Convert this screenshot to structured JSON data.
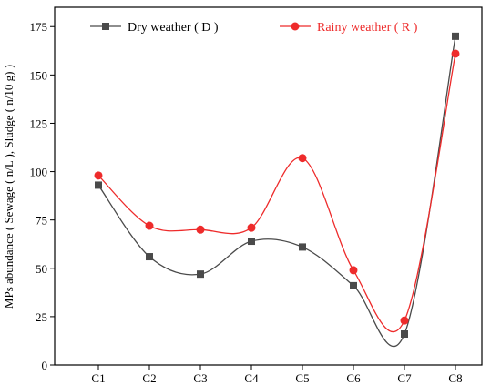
{
  "chart_data": {
    "type": "line",
    "title": "",
    "xlabel": "",
    "ylabel": "MPs abundance ( Sewage ( n/L ), Sludge ( n/10 g) )",
    "categories": [
      "C1",
      "C2",
      "C3",
      "C4",
      "C5",
      "C6",
      "C7",
      "C8"
    ],
    "ylim": [
      0,
      185
    ],
    "yticks": [
      0,
      25,
      50,
      75,
      100,
      125,
      150,
      175
    ],
    "grid": false,
    "legend_position": "top",
    "series": [
      {
        "name": "Dry weather ( D )",
        "values": [
          93,
          56,
          47,
          64,
          61,
          41,
          16,
          170
        ],
        "color": "#4a4a4a",
        "marker": "square"
      },
      {
        "name": "Rainy weather ( R )",
        "values": [
          98,
          72,
          70,
          71,
          107,
          49,
          23,
          161
        ],
        "color": "#ee2b2b",
        "marker": "circle"
      }
    ]
  }
}
